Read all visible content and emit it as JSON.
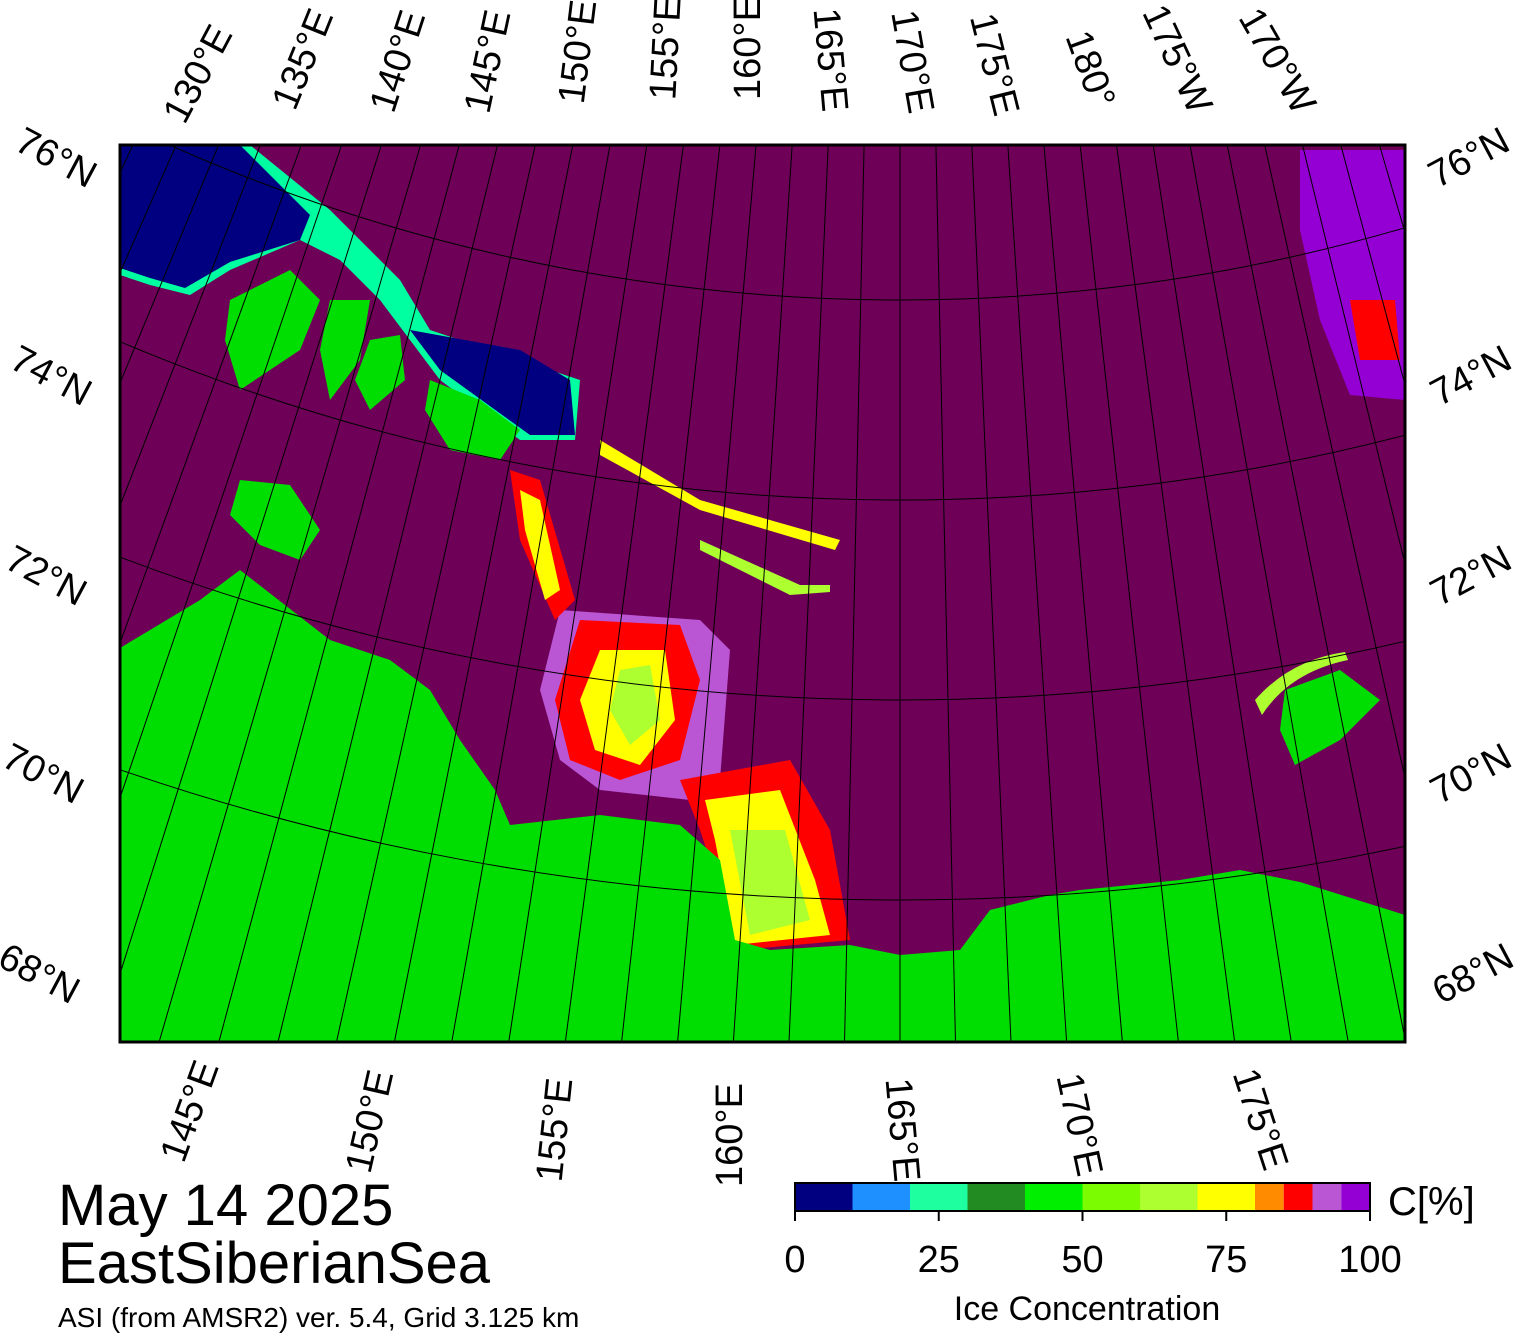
{
  "map": {
    "top_labels": [
      "130°E",
      "135°E",
      "140°E",
      "145°E",
      "150°E",
      "155°E",
      "160°E",
      "165°E",
      "170°E",
      "175°E",
      "180°",
      "175°W",
      "170°W"
    ],
    "bottom_labels": [
      "145°E",
      "150°E",
      "155°E",
      "160°E",
      "165°E",
      "170°E",
      "175°E"
    ],
    "left_labels": [
      "76°N",
      "74°N",
      "72°N",
      "70°N",
      "68°N"
    ],
    "right_labels": [
      "76°N",
      "74°N",
      "72°N",
      "70°N",
      "68°N"
    ],
    "date": "May 14 2025",
    "region": "EastSiberianSea",
    "source": "ASI (from AMSR2) ver. 5.4,  Grid 3.125 km"
  },
  "colorbar": {
    "bins": [
      0,
      10,
      20,
      30,
      40,
      50,
      60,
      70,
      80,
      85,
      90,
      95,
      100
    ],
    "colors": [
      "#000080",
      "#1e90ff",
      "#1effa0",
      "#228b22",
      "#00ee00",
      "#7cfc00",
      "#adff2f",
      "#ffff00",
      "#ff8c00",
      "#ff0000",
      "#ba55d3",
      "#9400d3"
    ],
    "lim": [
      0,
      100
    ],
    "ticks": [
      0,
      25,
      50,
      75,
      100
    ],
    "unit_label": "C[%]",
    "title": "Ice Concentration"
  }
}
